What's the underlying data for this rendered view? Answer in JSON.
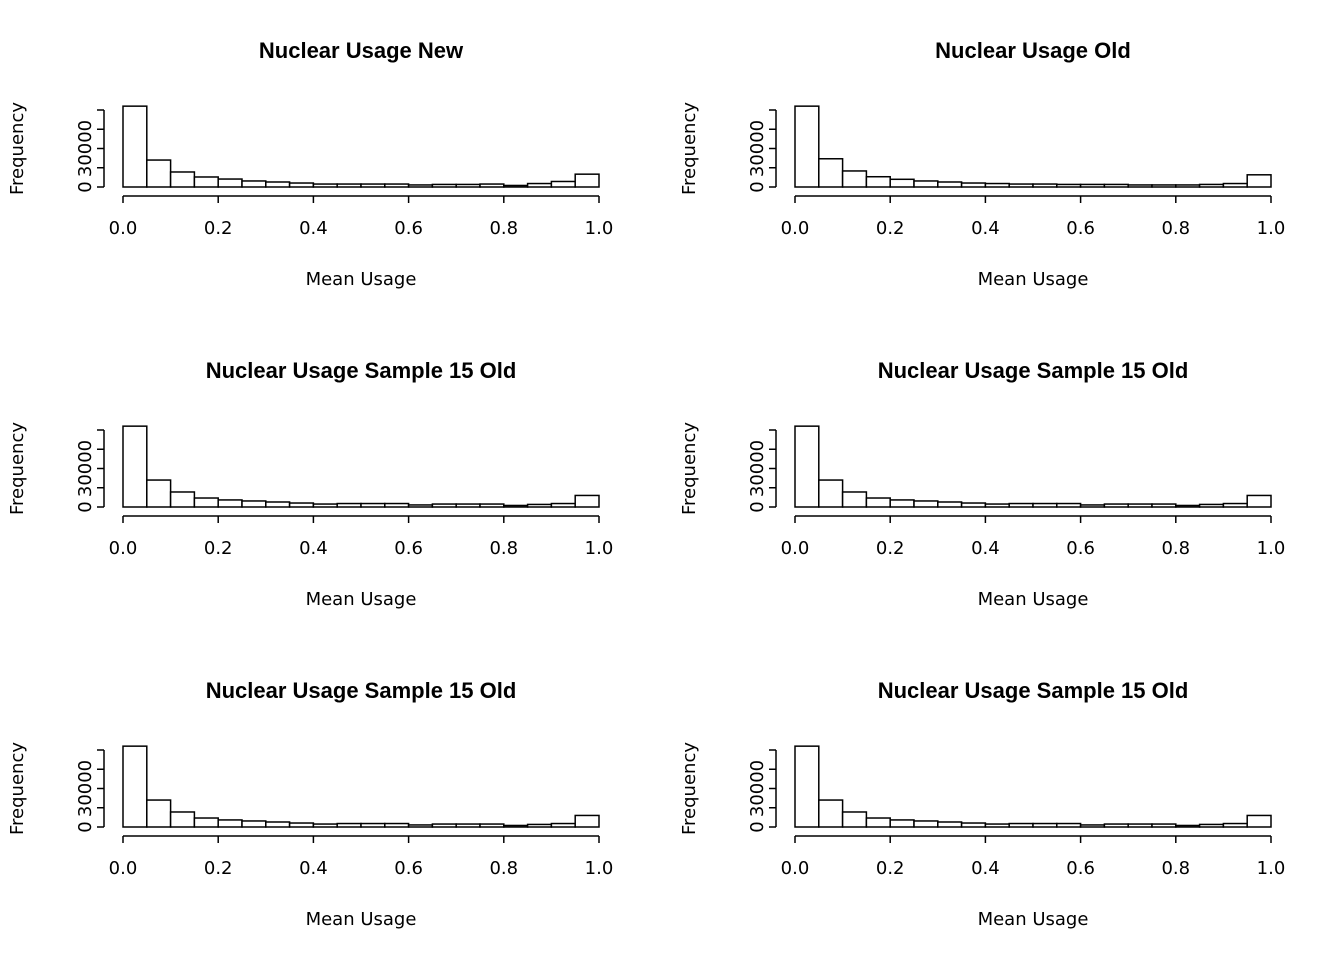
{
  "chart_data": [
    {
      "type": "histogram",
      "title": "Nuclear Usage New",
      "xlabel": "Mean Usage",
      "ylabel": "Frequency",
      "bins": [
        0,
        0.05,
        0.1,
        0.15,
        0.2,
        0.25,
        0.3,
        0.35,
        0.4,
        0.45,
        0.5,
        0.55,
        0.6,
        0.65,
        0.7,
        0.75,
        0.8,
        0.85,
        0.9,
        0.95,
        1
      ],
      "values": [
        63000,
        21000,
        11700,
        7800,
        6200,
        4700,
        3900,
        3100,
        2300,
        2300,
        2300,
        2300,
        1600,
        2000,
        2000,
        2300,
        1200,
        2700,
        4300,
        10000
      ],
      "xlim": [
        0,
        1
      ],
      "xticks": [
        {
          "value": 0,
          "label": "0.0"
        },
        0.2,
        0.4,
        0.6,
        0.8,
        {
          "value": 1,
          "label": "1.0"
        }
      ],
      "ylim": [
        0,
        60000
      ],
      "yticks": [
        0,
        30000
      ],
      "yminor": [
        15000,
        45000,
        60000
      ]
    },
    {
      "type": "histogram",
      "title": "Nuclear Usage Old",
      "xlabel": "Mean Usage",
      "ylabel": "Frequency",
      "bins": [
        0,
        0.05,
        0.1,
        0.15,
        0.2,
        0.25,
        0.3,
        0.35,
        0.4,
        0.45,
        0.5,
        0.55,
        0.6,
        0.65,
        0.7,
        0.75,
        0.8,
        0.85,
        0.9,
        0.95,
        1
      ],
      "values": [
        63000,
        22000,
        12500,
        8000,
        6000,
        4700,
        3900,
        3100,
        2700,
        2300,
        2300,
        2000,
        2000,
        2000,
        1600,
        1600,
        1600,
        2000,
        2700,
        9500
      ],
      "xlim": [
        0,
        1
      ],
      "xticks": [
        {
          "value": 0,
          "label": "0.0"
        },
        0.2,
        0.4,
        0.6,
        0.8,
        {
          "value": 1,
          "label": "1.0"
        }
      ],
      "ylim": [
        0,
        60000
      ],
      "yticks": [
        0,
        30000
      ],
      "yminor": [
        15000,
        45000,
        60000
      ]
    },
    {
      "type": "histogram",
      "title": "Nuclear Usage Sample 15 Old",
      "xlabel": "Mean Usage",
      "ylabel": "Frequency",
      "bins": [
        0,
        0.05,
        0.1,
        0.15,
        0.2,
        0.25,
        0.3,
        0.35,
        0.4,
        0.45,
        0.5,
        0.55,
        0.6,
        0.65,
        0.7,
        0.75,
        0.8,
        0.85,
        0.9,
        0.95,
        1
      ],
      "values": [
        63000,
        21000,
        11700,
        7000,
        5500,
        4700,
        3900,
        3100,
        2300,
        2700,
        2700,
        2700,
        1600,
        2300,
        2300,
        2300,
        1200,
        2000,
        2700,
        9000
      ],
      "xlim": [
        0,
        1
      ],
      "xticks": [
        {
          "value": 0,
          "label": "0.0"
        },
        0.2,
        0.4,
        0.6,
        0.8,
        {
          "value": 1,
          "label": "1.0"
        }
      ],
      "ylim": [
        0,
        60000
      ],
      "yticks": [
        0,
        30000
      ],
      "yminor": [
        15000,
        45000,
        60000
      ]
    },
    {
      "type": "histogram",
      "title": "Nuclear Usage Sample 15 Old",
      "xlabel": "Mean Usage",
      "ylabel": "Frequency",
      "bins": [
        0,
        0.05,
        0.1,
        0.15,
        0.2,
        0.25,
        0.3,
        0.35,
        0.4,
        0.45,
        0.5,
        0.55,
        0.6,
        0.65,
        0.7,
        0.75,
        0.8,
        0.85,
        0.9,
        0.95,
        1
      ],
      "values": [
        63000,
        21000,
        11700,
        7000,
        5500,
        4700,
        3900,
        3100,
        2300,
        2700,
        2700,
        2700,
        1600,
        2300,
        2300,
        2300,
        1200,
        2000,
        2700,
        9000
      ],
      "xlim": [
        0,
        1
      ],
      "xticks": [
        {
          "value": 0,
          "label": "0.0"
        },
        0.2,
        0.4,
        0.6,
        0.8,
        {
          "value": 1,
          "label": "1.0"
        }
      ],
      "ylim": [
        0,
        60000
      ],
      "yticks": [
        0,
        30000
      ],
      "yminor": [
        15000,
        45000,
        60000
      ]
    },
    {
      "type": "histogram",
      "title": "Nuclear Usage Sample 15 Old",
      "xlabel": "Mean Usage",
      "ylabel": "Frequency",
      "bins": [
        0,
        0.05,
        0.1,
        0.15,
        0.2,
        0.25,
        0.3,
        0.35,
        0.4,
        0.45,
        0.5,
        0.55,
        0.6,
        0.65,
        0.7,
        0.75,
        0.8,
        0.85,
        0.9,
        0.95,
        1
      ],
      "values": [
        63000,
        21000,
        11700,
        7000,
        5500,
        4700,
        3900,
        3100,
        2300,
        2700,
        2700,
        2700,
        1600,
        2300,
        2300,
        2300,
        1200,
        2000,
        2700,
        9000
      ],
      "xlim": [
        0,
        1
      ],
      "xticks": [
        {
          "value": 0,
          "label": "0.0"
        },
        0.2,
        0.4,
        0.6,
        0.8,
        {
          "value": 1,
          "label": "1.0"
        }
      ],
      "ylim": [
        0,
        60000
      ],
      "yticks": [
        0,
        30000
      ],
      "yminor": [
        15000,
        45000,
        60000
      ]
    },
    {
      "type": "histogram",
      "title": "Nuclear Usage Sample 15 Old",
      "xlabel": "Mean Usage",
      "ylabel": "Frequency",
      "bins": [
        0,
        0.05,
        0.1,
        0.15,
        0.2,
        0.25,
        0.3,
        0.35,
        0.4,
        0.45,
        0.5,
        0.55,
        0.6,
        0.65,
        0.7,
        0.75,
        0.8,
        0.85,
        0.9,
        0.95,
        1
      ],
      "values": [
        63000,
        21000,
        11700,
        7000,
        5500,
        4700,
        3900,
        3100,
        2300,
        2700,
        2700,
        2700,
        1600,
        2300,
        2300,
        2300,
        1200,
        2000,
        2700,
        9000
      ],
      "xlim": [
        0,
        1
      ],
      "xticks": [
        {
          "value": 0,
          "label": "0.0"
        },
        0.2,
        0.4,
        0.6,
        0.8,
        {
          "value": 1,
          "label": "1.0"
        }
      ],
      "ylim": [
        0,
        60000
      ],
      "yticks": [
        0,
        30000
      ],
      "yminor": [
        15000,
        45000,
        60000
      ]
    }
  ]
}
